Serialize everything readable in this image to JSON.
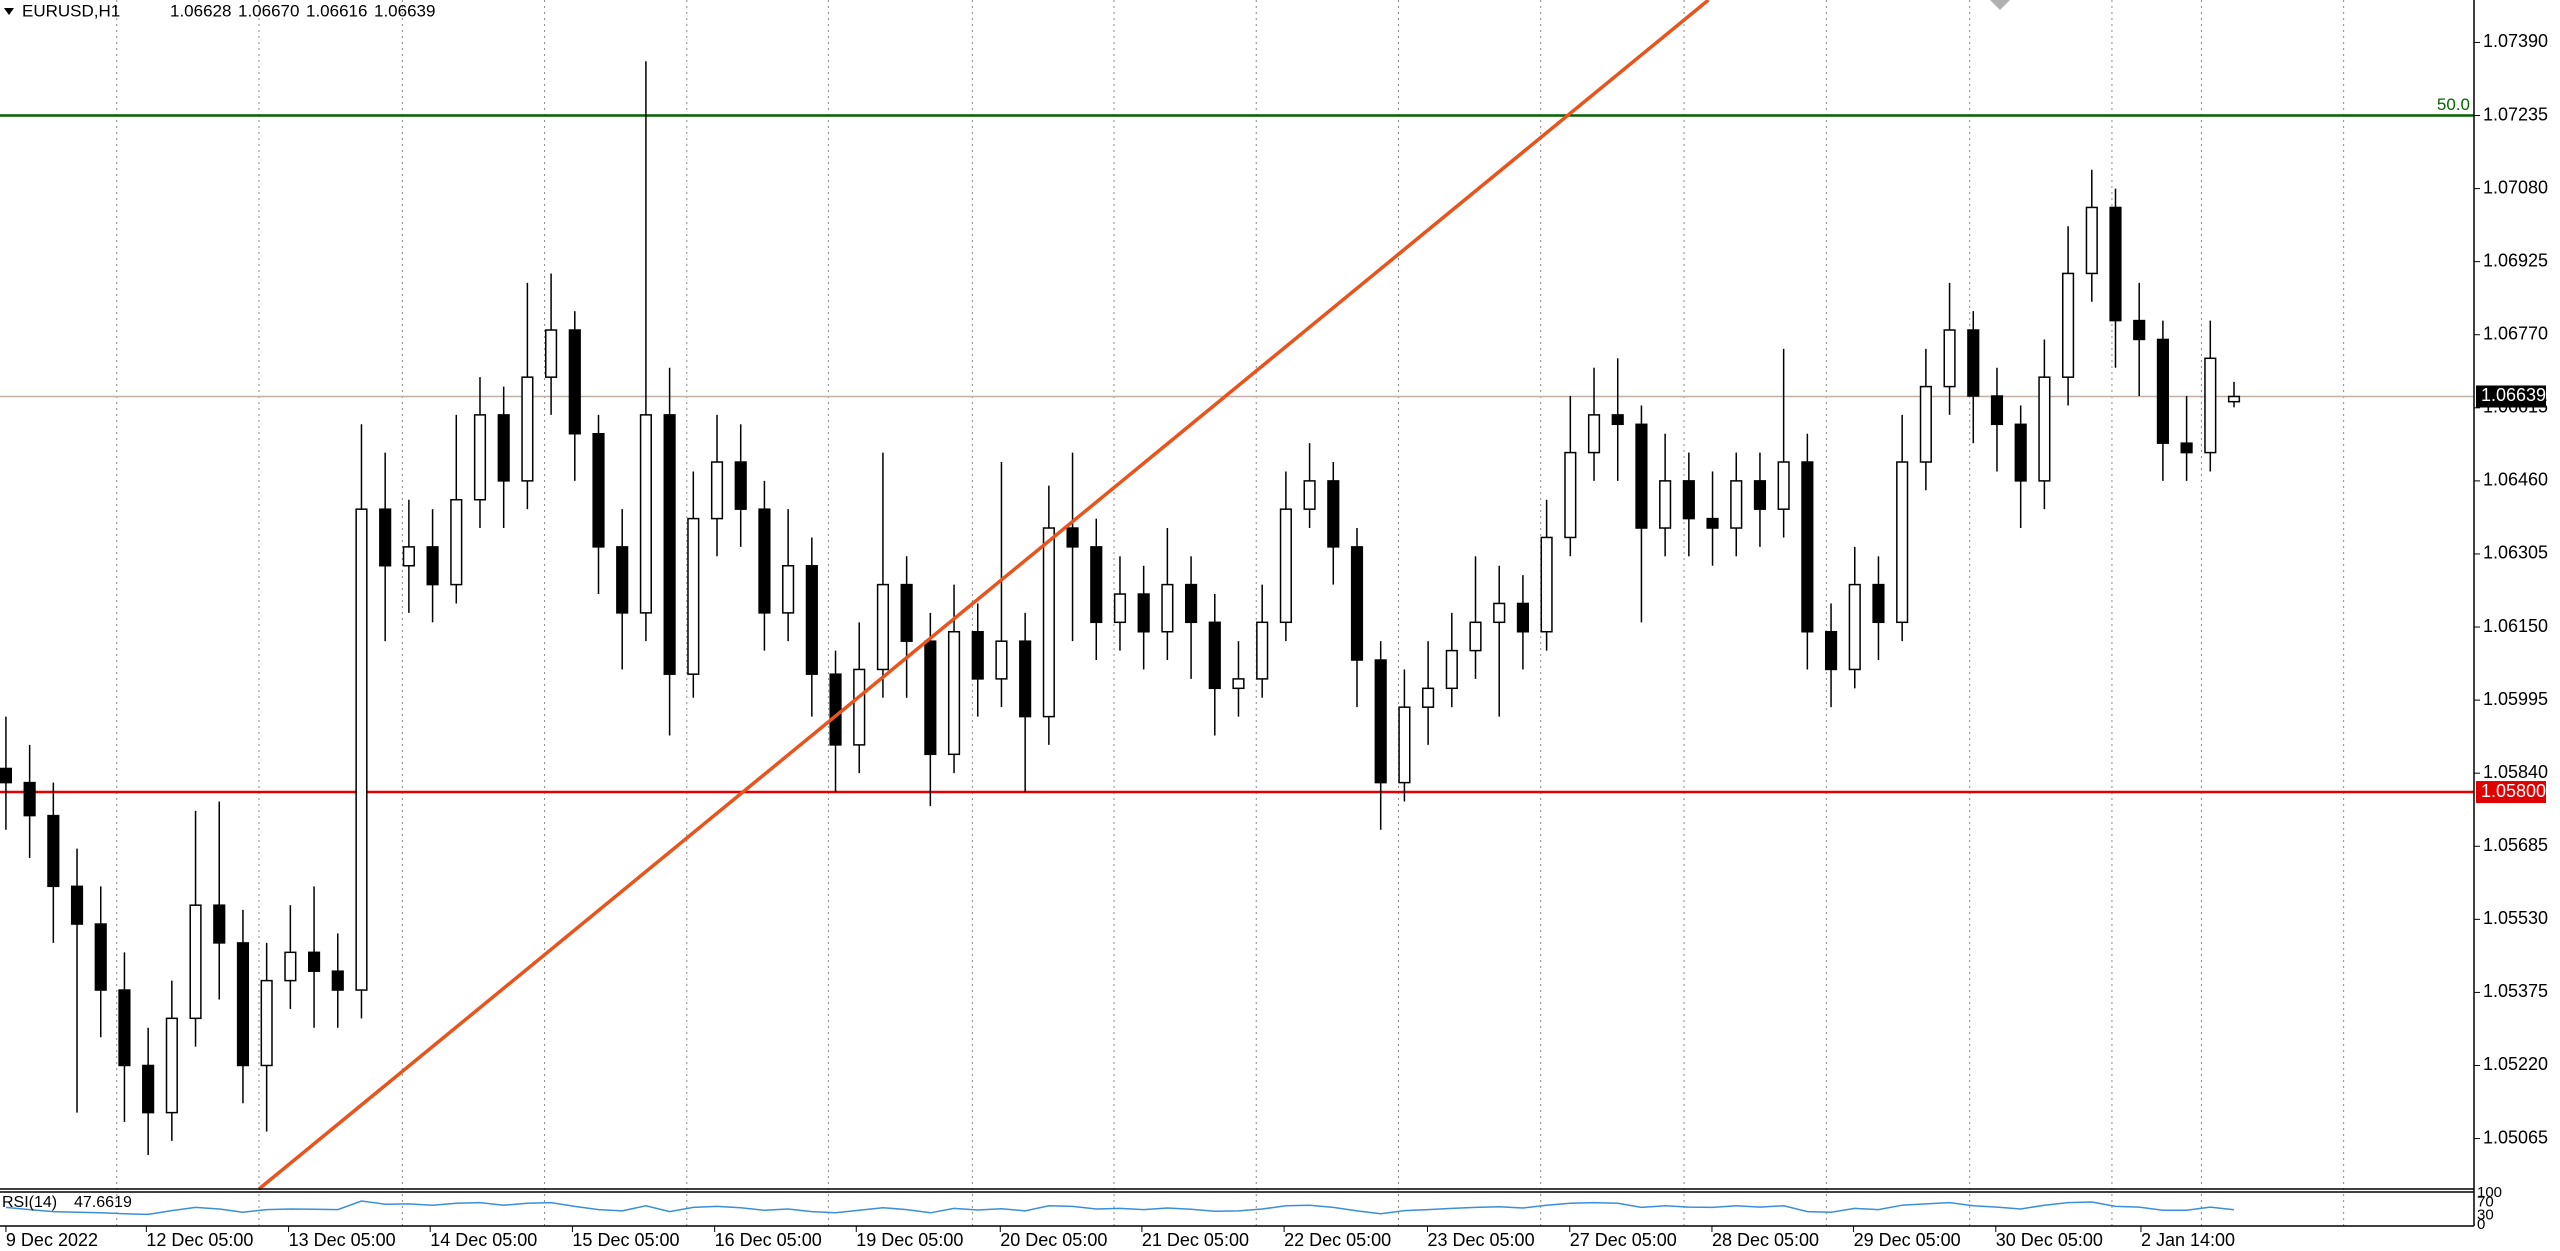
{
  "chart_data": {
    "type": "candlestick",
    "symbol": "EURUSD,H1",
    "header_values": [
      "1.06628",
      "1.06670",
      "1.06616",
      "1.06639"
    ],
    "x": [
      0,
      4,
      8,
      12,
      16,
      20,
      24,
      28,
      32,
      36,
      40,
      44,
      48,
      52,
      56,
      60,
      64,
      68,
      72,
      76,
      80,
      84,
      88,
      92,
      96,
      100,
      104,
      108,
      112,
      116,
      120,
      124,
      128,
      132,
      136,
      140,
      144,
      148,
      152,
      156,
      160,
      164,
      168,
      172,
      176,
      180,
      184,
      188,
      192,
      196,
      200,
      204,
      208,
      212,
      216,
      220,
      224,
      228,
      232,
      236,
      240,
      244,
      248,
      252,
      256,
      260,
      264,
      268,
      272,
      276,
      280,
      284,
      288,
      292,
      296,
      300,
      304,
      308,
      312,
      316,
      320,
      324,
      328,
      332,
      336,
      340,
      344,
      348,
      352,
      356,
      360,
      364,
      368,
      372,
      376
    ],
    "open": [
      1.0585,
      1.0582,
      1.0575,
      1.056,
      1.0552,
      1.0538,
      1.0522,
      1.0512,
      1.0532,
      1.0556,
      1.0548,
      1.0522,
      1.054,
      1.0546,
      1.0542,
      1.0538,
      1.064,
      1.0628,
      1.0632,
      1.0624,
      1.0642,
      1.066,
      1.0646,
      1.0668,
      1.0678,
      1.0656,
      1.0632,
      1.0618,
      1.066,
      1.0605,
      1.0638,
      1.065,
      1.064,
      1.0618,
      1.0628,
      1.0605,
      1.059,
      1.0606,
      1.0624,
      1.0612,
      1.0588,
      1.0614,
      1.0604,
      1.0612,
      1.0596,
      1.0636,
      1.0632,
      1.0616,
      1.0622,
      1.0614,
      1.0624,
      1.0616,
      1.0602,
      1.0604,
      1.0616,
      1.064,
      1.0646,
      1.0632,
      1.0608,
      1.0582,
      1.0598,
      1.0602,
      1.061,
      1.0616,
      1.062,
      1.0614,
      1.0634,
      1.0652,
      1.066,
      1.0658,
      1.0636,
      1.0646,
      1.0638,
      1.0636,
      1.0646,
      1.064,
      1.065,
      1.0614,
      1.0606,
      1.0624,
      1.0616,
      1.065,
      1.0666,
      1.0678,
      1.0664,
      1.0658,
      1.0646,
      1.0668,
      1.069,
      1.0704,
      1.068,
      1.0676,
      1.0654,
      1.0652,
      1.06628
    ],
    "high": [
      1.0596,
      1.059,
      1.0582,
      1.0568,
      1.056,
      1.0546,
      1.053,
      1.054,
      1.0576,
      1.0578,
      1.0555,
      1.0548,
      1.0556,
      1.056,
      1.055,
      1.0658,
      1.0652,
      1.0642,
      1.064,
      1.066,
      1.0668,
      1.0666,
      1.0688,
      1.069,
      1.0682,
      1.066,
      1.064,
      1.0735,
      1.067,
      1.0648,
      1.066,
      1.0658,
      1.0646,
      1.064,
      1.0634,
      1.061,
      1.0616,
      1.0652,
      1.063,
      1.0618,
      1.0624,
      1.062,
      1.065,
      1.0618,
      1.0645,
      1.0652,
      1.0638,
      1.063,
      1.0628,
      1.0636,
      1.063,
      1.0622,
      1.0612,
      1.0624,
      1.0648,
      1.0654,
      1.065,
      1.0636,
      1.0612,
      1.0606,
      1.0612,
      1.0618,
      1.063,
      1.0628,
      1.0626,
      1.0642,
      1.0664,
      1.067,
      1.0672,
      1.0662,
      1.0656,
      1.0652,
      1.0648,
      1.0652,
      1.0652,
      1.0674,
      1.0656,
      1.062,
      1.0632,
      1.063,
      1.066,
      1.0674,
      1.0688,
      1.0682,
      1.067,
      1.0662,
      1.0676,
      1.07,
      1.0712,
      1.0708,
      1.0688,
      1.068,
      1.0664,
      1.068,
      1.0667
    ],
    "low": [
      1.0572,
      1.0566,
      1.0548,
      1.0512,
      1.0528,
      1.051,
      1.0503,
      1.0506,
      1.0526,
      1.0536,
      1.0514,
      1.0508,
      1.0534,
      1.053,
      1.053,
      1.0532,
      1.0612,
      1.0618,
      1.0616,
      1.062,
      1.0636,
      1.0636,
      1.064,
      1.066,
      1.0646,
      1.0622,
      1.0606,
      1.0612,
      1.0592,
      1.06,
      1.063,
      1.0632,
      1.061,
      1.0612,
      1.0596,
      1.058,
      1.0584,
      1.06,
      1.06,
      1.0577,
      1.0584,
      1.0596,
      1.0598,
      1.058,
      1.059,
      1.0612,
      1.0608,
      1.061,
      1.0606,
      1.0608,
      1.0604,
      1.0592,
      1.0596,
      1.06,
      1.0612,
      1.0636,
      1.0624,
      1.0598,
      1.0572,
      1.0578,
      1.059,
      1.0598,
      1.0604,
      1.0596,
      1.0606,
      1.061,
      1.063,
      1.0646,
      1.0646,
      1.0616,
      1.063,
      1.063,
      1.0628,
      1.063,
      1.0632,
      1.0634,
      1.0606,
      1.0598,
      1.0602,
      1.0608,
      1.0612,
      1.0644,
      1.066,
      1.0654,
      1.0648,
      1.0636,
      1.064,
      1.0662,
      1.0684,
      1.067,
      1.0664,
      1.0646,
      1.0646,
      1.0648,
      1.06616
    ],
    "close": [
      1.0582,
      1.0575,
      1.056,
      1.0552,
      1.0538,
      1.0522,
      1.0512,
      1.0532,
      1.0556,
      1.0548,
      1.0522,
      1.054,
      1.0546,
      1.0542,
      1.0538,
      1.064,
      1.0628,
      1.0632,
      1.0624,
      1.0642,
      1.066,
      1.0646,
      1.0668,
      1.0678,
      1.0656,
      1.0632,
      1.0618,
      1.066,
      1.0605,
      1.0638,
      1.065,
      1.064,
      1.0618,
      1.0628,
      1.0605,
      1.059,
      1.0606,
      1.0624,
      1.0612,
      1.0588,
      1.0614,
      1.0604,
      1.0612,
      1.0596,
      1.0636,
      1.0632,
      1.0616,
      1.0622,
      1.0614,
      1.0624,
      1.0616,
      1.0602,
      1.0604,
      1.0616,
      1.064,
      1.0646,
      1.0632,
      1.0608,
      1.0582,
      1.0598,
      1.0602,
      1.061,
      1.0616,
      1.062,
      1.0614,
      1.0634,
      1.0652,
      1.066,
      1.0658,
      1.0636,
      1.0646,
      1.0638,
      1.0636,
      1.0646,
      1.064,
      1.065,
      1.0614,
      1.0606,
      1.0624,
      1.0616,
      1.065,
      1.0666,
      1.0678,
      1.0664,
      1.0658,
      1.0646,
      1.0668,
      1.069,
      1.0704,
      1.068,
      1.0676,
      1.0654,
      1.0652,
      1.0672,
      1.06639
    ],
    "color_up": "#ffffff",
    "color_down": "#000000",
    "xlim": [
      -1,
      416.5
    ],
    "ylim": [
      1.04958,
      1.0748
    ],
    "yticks": [
      {
        "value": 1.0739,
        "label": "1.07390"
      },
      {
        "value": 1.07235,
        "label": "1.07235"
      },
      {
        "value": 1.0708,
        "label": "1.07080"
      },
      {
        "value": 1.06925,
        "label": "1.06925"
      },
      {
        "value": 1.0677,
        "label": "1.06770"
      },
      {
        "value": 1.06615,
        "label": "1.06615"
      },
      {
        "value": 1.0646,
        "label": "1.06460"
      },
      {
        "value": 1.06305,
        "label": "1.06305"
      },
      {
        "value": 1.0615,
        "label": "1.06150"
      },
      {
        "value": 1.05995,
        "label": "1.05995"
      },
      {
        "value": 1.0584,
        "label": "1.05840"
      },
      {
        "value": 1.05685,
        "label": "1.05685"
      },
      {
        "value": 1.0553,
        "label": "1.05530"
      },
      {
        "value": 1.05375,
        "label": "1.05375"
      },
      {
        "value": 1.0522,
        "label": "1.05220"
      },
      {
        "value": 1.05065,
        "label": "1.05065"
      }
    ],
    "xticks": [
      {
        "value": 0,
        "label": "9 Dec 2022"
      },
      {
        "value": 23.7,
        "label": "12 Dec 05:00"
      },
      {
        "value": 47.7,
        "label": "13 Dec 05:00"
      },
      {
        "value": 71.6,
        "label": "14 Dec 05:00"
      },
      {
        "value": 95.6,
        "label": "15 Dec 05:00"
      },
      {
        "value": 119.6,
        "label": "16 Dec 05:00"
      },
      {
        "value": 143.5,
        "label": "19 Dec 05:00"
      },
      {
        "value": 167.8,
        "label": "20 Dec 05:00"
      },
      {
        "value": 191.7,
        "label": "21 Dec 05:00"
      },
      {
        "value": 215.7,
        "label": "22 Dec 05:00"
      },
      {
        "value": 239.9,
        "label": "23 Dec 05:00"
      },
      {
        "value": 263.9,
        "label": "27 Dec 05:00"
      },
      {
        "value": 287.9,
        "label": "28 Dec 05:00"
      },
      {
        "value": 311.8,
        "label": "29 Dec 05:00"
      },
      {
        "value": 335.8,
        "label": "30 Dec 05:00"
      },
      {
        "value": 360.3,
        "label": "2 Jan 14:00"
      }
    ],
    "separators": [
      18.7,
      42.7,
      66.9,
      90.9,
      114.9,
      138.8,
      163.1,
      187,
      211,
      235,
      259,
      283.2,
      307.2,
      331.4,
      355.4,
      370.5,
      394.5
    ],
    "trendline": {
      "x": [
        42.7,
        287.3
      ],
      "y": [
        1.04958,
        1.0748
      ],
      "color": "#e8541c"
    },
    "levels": [
      {
        "value": 1.07235,
        "color": "#006400",
        "label": "50.0"
      },
      {
        "value": 1.058,
        "color": "#e00000",
        "label": "1.05800"
      }
    ],
    "last_price": {
      "value": 1.06639,
      "label": "1.06639"
    },
    "rsi": {
      "name": "RSI(14)",
      "last_value": 47.6619,
      "color": "#3a8fd8",
      "ylim": [
        0,
        100
      ],
      "yticks": [
        100,
        70,
        30,
        0
      ],
      "values": [
        55,
        48,
        42,
        40,
        38,
        35,
        33,
        45,
        55,
        50,
        40,
        48,
        50,
        49,
        48,
        75,
        65,
        66,
        62,
        68,
        70,
        62,
        68,
        70,
        58,
        48,
        44,
        60,
        42,
        55,
        58,
        54,
        46,
        50,
        42,
        38,
        46,
        54,
        48,
        38,
        52,
        47,
        51,
        44,
        60,
        58,
        50,
        52,
        48,
        53,
        49,
        43,
        44,
        50,
        60,
        62,
        55,
        44,
        35,
        45,
        48,
        52,
        55,
        57,
        53,
        62,
        68,
        70,
        68,
        55,
        60,
        56,
        55,
        60,
        56,
        60,
        42,
        40,
        52,
        48,
        62,
        66,
        70,
        60,
        56,
        50,
        62,
        70,
        72,
        58,
        56,
        46,
        46,
        56,
        47.6619
      ]
    }
  }
}
